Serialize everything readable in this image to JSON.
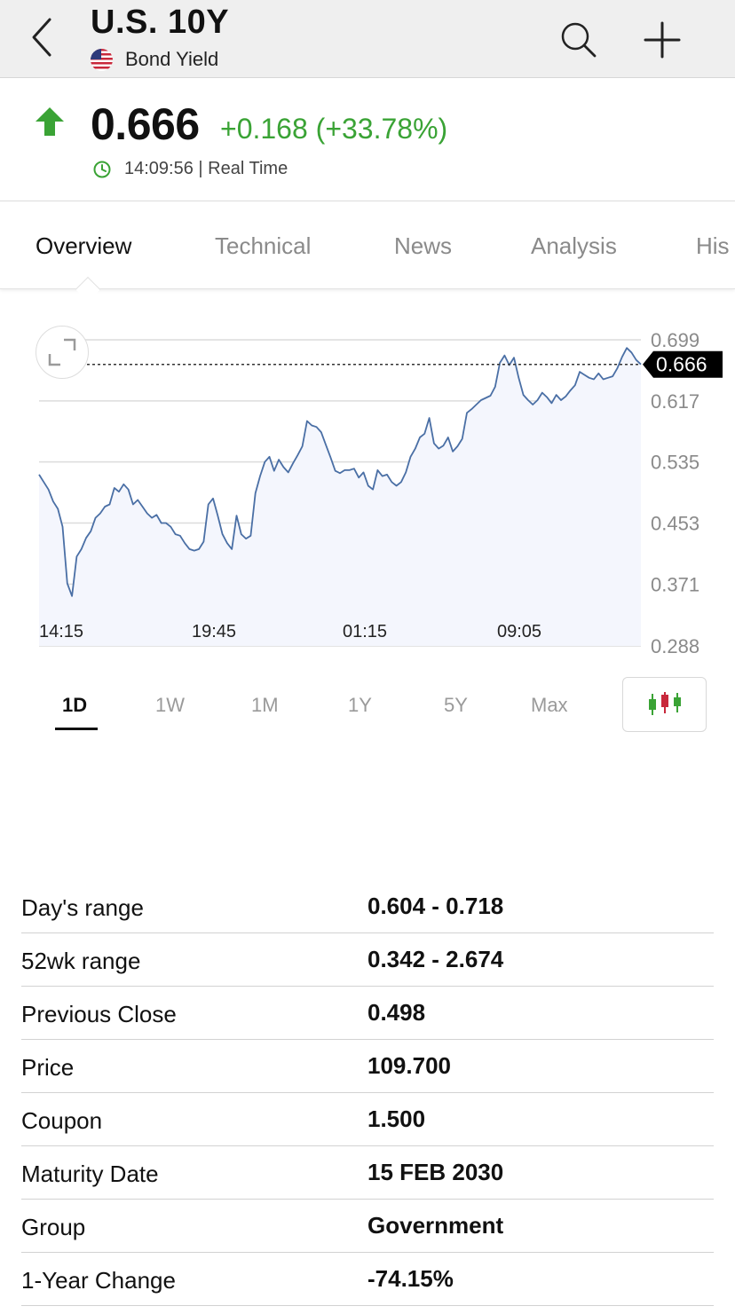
{
  "header": {
    "title": "U.S. 10Y",
    "subtitle": "Bond Yield",
    "back_icon": "chevron-left-icon",
    "search_icon": "search-icon",
    "add_icon": "plus-icon",
    "flag_icon": "us-flag-icon"
  },
  "quote": {
    "last": "0.666",
    "change": "+0.168 (+33.78%)",
    "time": "14:09:56 | Real Time",
    "direction_icon": "arrow-up-icon",
    "up_color": "#3aa335"
  },
  "tabs": [
    {
      "label": "Overview",
      "active": true
    },
    {
      "label": "Technical",
      "active": false
    },
    {
      "label": "News",
      "active": false
    },
    {
      "label": "Analysis",
      "active": false
    },
    {
      "label": "His",
      "active": false
    }
  ],
  "chart_data": {
    "type": "area",
    "x_tick_labels": [
      "14:15",
      "19:45",
      "01:15",
      "09:05"
    ],
    "y_tick_labels": [
      "0.699",
      "0.617",
      "0.535",
      "0.453",
      "0.371",
      "0.288"
    ],
    "ylim": [
      0.288,
      0.699
    ],
    "current_value_label": "0.666",
    "series": [
      {
        "values": [
          0.518,
          0.508,
          0.498,
          0.482,
          0.472,
          0.448,
          0.372,
          0.355,
          0.408,
          0.418,
          0.433,
          0.442,
          0.46,
          0.466,
          0.475,
          0.478,
          0.5,
          0.495,
          0.505,
          0.498,
          0.478,
          0.484,
          0.475,
          0.466,
          0.46,
          0.464,
          0.453,
          0.453,
          0.448,
          0.438,
          0.436,
          0.426,
          0.418,
          0.416,
          0.418,
          0.428,
          0.478,
          0.486,
          0.463,
          0.438,
          0.426,
          0.418,
          0.463,
          0.438,
          0.432,
          0.436,
          0.493,
          0.516,
          0.535,
          0.542,
          0.523,
          0.538,
          0.528,
          0.521,
          0.533,
          0.544,
          0.556,
          0.59,
          0.584,
          0.582,
          0.575,
          0.558,
          0.541,
          0.523,
          0.52,
          0.524,
          0.524,
          0.526,
          0.514,
          0.521,
          0.503,
          0.498,
          0.524,
          0.516,
          0.518,
          0.508,
          0.503,
          0.508,
          0.521,
          0.542,
          0.553,
          0.568,
          0.573,
          0.594,
          0.56,
          0.553,
          0.557,
          0.568,
          0.549,
          0.556,
          0.566,
          0.601,
          0.606,
          0.612,
          0.618,
          0.621,
          0.624,
          0.636,
          0.668,
          0.678,
          0.665,
          0.675,
          0.648,
          0.625,
          0.618,
          0.612,
          0.618,
          0.628,
          0.622,
          0.614,
          0.625,
          0.618,
          0.623,
          0.631,
          0.638,
          0.656,
          0.652,
          0.648,
          0.646,
          0.654,
          0.646,
          0.648,
          0.65,
          0.661,
          0.676,
          0.688,
          0.682,
          0.672,
          0.666
        ]
      }
    ],
    "line_color": "#4a6fa5",
    "fill_color": "#f4f6fd",
    "grid": true,
    "label_bg": "#000000"
  },
  "periods": [
    {
      "label": "1D",
      "active": true
    },
    {
      "label": "1W",
      "active": false
    },
    {
      "label": "1M",
      "active": false
    },
    {
      "label": "1Y",
      "active": false
    },
    {
      "label": "5Y",
      "active": false
    },
    {
      "label": "Max",
      "active": false
    }
  ],
  "candle_icon": "candlestick-icon",
  "expand_icon": "expand-icon",
  "details": [
    {
      "label": "Day's range",
      "value": "0.604 - 0.718"
    },
    {
      "label": "52wk range",
      "value": "0.342 - 2.674"
    },
    {
      "label": "Previous Close",
      "value": "0.498"
    },
    {
      "label": "Price",
      "value": "109.700"
    },
    {
      "label": "Coupon",
      "value": "1.500"
    },
    {
      "label": "Maturity Date",
      "value": "15 FEB 2030"
    },
    {
      "label": "Group",
      "value": "Government"
    },
    {
      "label": "1-Year Change",
      "value": "-74.15%"
    }
  ]
}
